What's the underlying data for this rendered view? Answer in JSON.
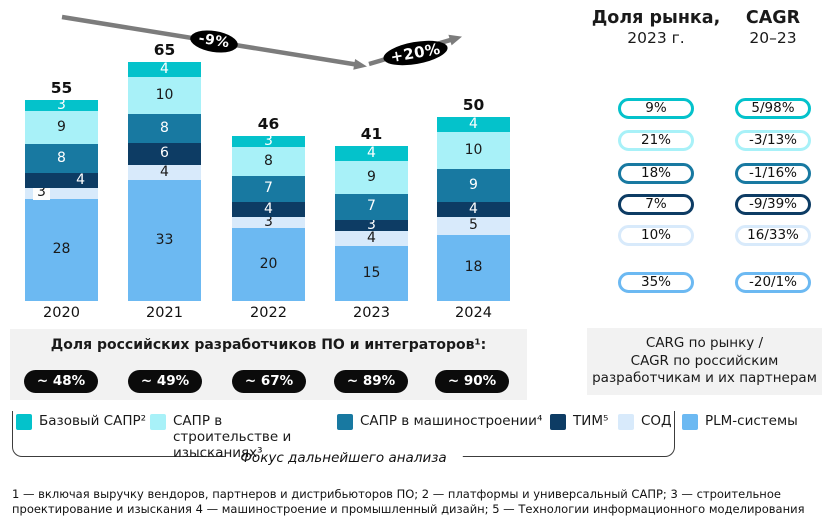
{
  "header": {
    "market_share_title": "Доля рынка,",
    "market_share_sub": "2023 г.",
    "cagr_title": "CAGR",
    "cagr_sub": "20–23"
  },
  "trend": {
    "drop_label": "-9%",
    "rise_label": "+20%"
  },
  "chart_data": {
    "type": "bar",
    "stacked": true,
    "categories": [
      "2020",
      "2021",
      "2022",
      "2023",
      "2024"
    ],
    "totals": [
      55,
      65,
      46,
      41,
      50
    ],
    "series": [
      {
        "name": "Базовый САПР²",
        "color": "#04C2CB",
        "label_color": "#ffffff",
        "values": [
          3,
          4,
          3,
          4,
          4
        ]
      },
      {
        "name": "САПР в строительстве и изысканиях³",
        "color": "#A8F1F8",
        "label_color": "#1a1a1a",
        "values": [
          9,
          10,
          8,
          9,
          10
        ]
      },
      {
        "name": "САПР в машиностроении⁴",
        "color": "#1879A1",
        "label_color": "#ffffff",
        "values": [
          8,
          8,
          7,
          7,
          9
        ]
      },
      {
        "name": "ТИМ⁵",
        "color": "#0D3C64",
        "label_color": "#ffffff",
        "values": [
          4,
          6,
          4,
          3,
          4
        ]
      },
      {
        "name": "СОД",
        "color": "#D8EAFB",
        "label_color": "#1a1a1a",
        "values": [
          3,
          4,
          3,
          4,
          5
        ]
      },
      {
        "name": "PLM-системы",
        "color": "#6CB9F2",
        "label_color": "#1a1a1a",
        "values": [
          28,
          33,
          20,
          15,
          18
        ]
      }
    ],
    "label_overrides": [
      {
        "category": "2020",
        "series": "ТИМ⁵",
        "align": "right"
      },
      {
        "category": "2020",
        "series": "СОД",
        "align": "left-chip"
      }
    ],
    "annotations": [
      "-9%",
      "+20%"
    ],
    "legend_position": "bottom"
  },
  "market_share_2023": [
    "9%",
    "21%",
    "18%",
    "7%",
    "10%",
    "35%"
  ],
  "cagr_20_23": [
    "5/98%",
    "-3/13%",
    "-1/16%",
    "-9/39%",
    "16/33%",
    "-20/1%"
  ],
  "ru_share": {
    "title": "Доля российских разработчиков ПО и интеграторов¹:",
    "values": [
      "~ 48%",
      "~ 49%",
      "~ 67%",
      "~ 89%",
      "~ 90%"
    ]
  },
  "cagr_note_lines": [
    "CARG по рынку /",
    "CAGR по российским",
    "разработчикам и их партнерам"
  ],
  "focus_label": "Фокус дальнейшего анализа",
  "footnote": "1 — включая выручку вендоров, партнеров и дистрибьюторов ПО; 2 — платформы и универсальный САПР; 3 — строительное проектирование и изыскания 4 — машиностроение и промышленный дизайн; 5 — Технологии информационного моделирования"
}
